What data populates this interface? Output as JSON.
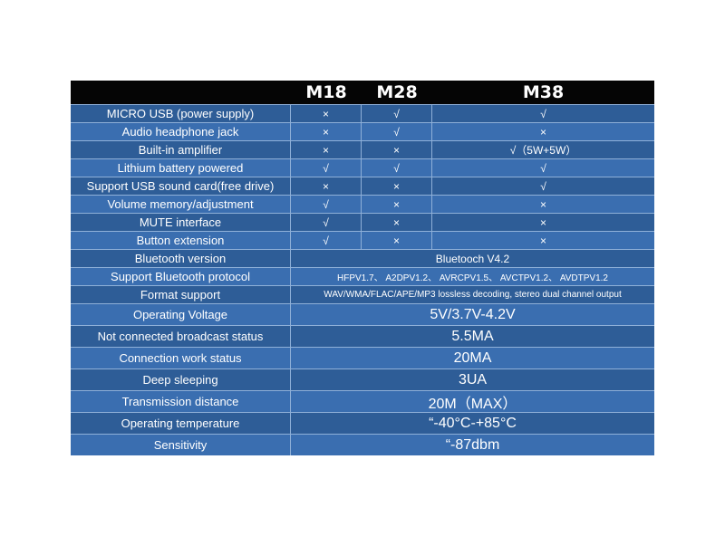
{
  "header": {
    "blank": "",
    "col1": "M18",
    "col2": "M28",
    "col3": "M38"
  },
  "rows": [
    {
      "label": "MICRO USB (power supply)",
      "v1": "×",
      "v2": "√",
      "v3": "√"
    },
    {
      "label": "Audio headphone jack",
      "v1": "×",
      "v2": "√",
      "v3": "×"
    },
    {
      "label": "Built-in amplifier",
      "v1": "×",
      "v2": "×",
      "v3": "√（5W+5W）"
    },
    {
      "label": "Lithium battery powered",
      "v1": "√",
      "v2": "√",
      "v3": "√"
    },
    {
      "label": "Support USB sound card(free drive)",
      "v1": "×",
      "v2": "×",
      "v3": "√"
    },
    {
      "label": "Volume memory/adjustment",
      "v1": "√",
      "v2": "×",
      "v3": "×"
    },
    {
      "label": "MUTE interface",
      "v1": "√",
      "v2": "×",
      "v3": "×"
    },
    {
      "label": "Button extension",
      "v1": "√",
      "v2": "×",
      "v3": "×"
    }
  ],
  "merged_rows": [
    {
      "label": "Bluetooth version",
      "value": "Bluetooch V4.2"
    },
    {
      "label": "Support Bluetooth protocol",
      "value": "HFPV1.7、 A2DPV1.2、 AVRCPV1.5、 AVCTPV1.2、 AVDTPV1.2"
    },
    {
      "label": "Format support",
      "value": "WAV/WMA/FLAC/APE/MP3 lossless decoding, stereo dual channel output"
    },
    {
      "label": "Operating Voltage",
      "value": "5V/3.7V-4.2V"
    },
    {
      "label": "Not connected broadcast status",
      "value": "5.5MA"
    },
    {
      "label": "Connection work status",
      "value": "20MA"
    },
    {
      "label": "Deep sleeping",
      "value": "3UA"
    },
    {
      "label": "Transmission distance",
      "value": "20M（MAX）"
    },
    {
      "label": "Operating temperature",
      "value": "“-40°C-+85°C"
    },
    {
      "label": "Sensitivity",
      "value": "“-87dbm"
    }
  ]
}
